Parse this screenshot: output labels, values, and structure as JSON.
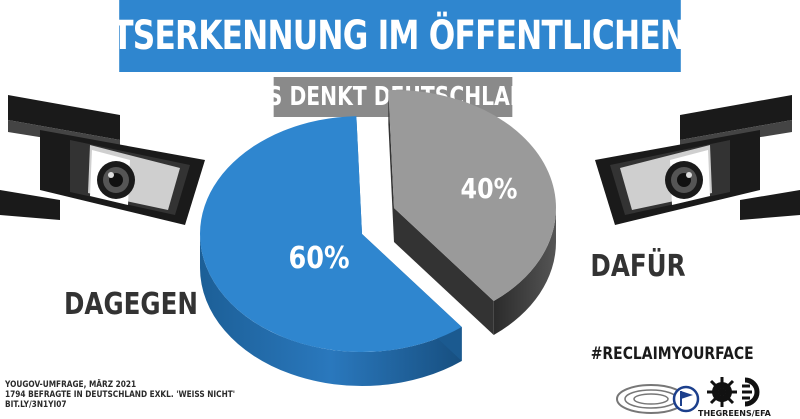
{
  "header": {
    "title": "GESICHTSERKENNUNG IM ÖFFENTLICHEN RAUM?",
    "subtitle": "WAS DENKT DEUTSCHLAND?"
  },
  "chart_data": {
    "type": "pie",
    "style": "3d-exploded",
    "slices": [
      {
        "label": "DAGEGEN",
        "value": 60,
        "value_label": "60%",
        "color": "#2f86cf"
      },
      {
        "label": "DAFÜR",
        "value": 40,
        "value_label": "40%",
        "color": "#9a9a9a"
      }
    ]
  },
  "footer": {
    "lines": [
      "YOUGOV-UMFRAGE, MÄRZ 2021",
      "1794 BEFRAGTE IN DEUTSCHLAND EXKL. 'WEIß NICHT'",
      "BIT.LY/3N1YI07"
    ],
    "hashtag": "#RECLAIMYOURFACE",
    "logo_text": "THEGREENS/EFA"
  },
  "colors": {
    "accent_blue": "#2f86cf",
    "gray": "#8a8a8a",
    "camera_dark": "#1a1a1a"
  },
  "icons": [
    "camera-left-icon",
    "camera-right-icon",
    "pirate-party-logo",
    "greens-efa-logo",
    "eu-parliament-logo"
  ]
}
